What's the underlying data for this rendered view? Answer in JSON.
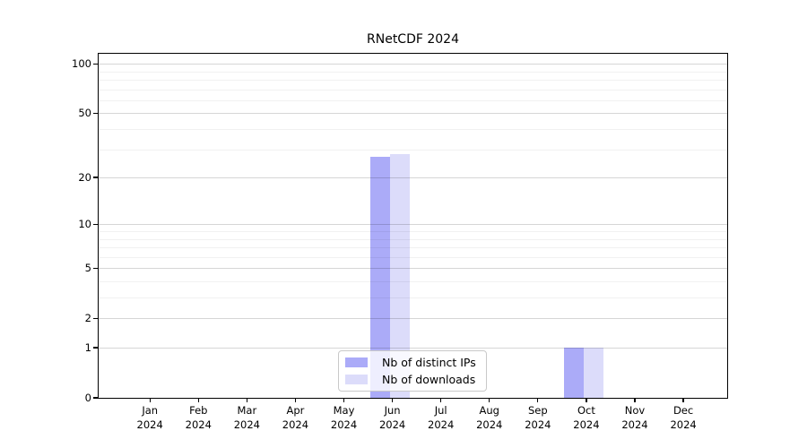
{
  "chart_data": {
    "type": "bar",
    "title": "RNetCDF 2024",
    "x_categories": [
      "Jan",
      "Feb",
      "Mar",
      "Apr",
      "May",
      "Jun",
      "Jul",
      "Aug",
      "Sep",
      "Oct",
      "Nov",
      "Dec"
    ],
    "x_year_label": "2024",
    "series": [
      {
        "name": "Nb of distinct IPs",
        "color": "#ababf8",
        "values": [
          0,
          0,
          0,
          0,
          0,
          27,
          0,
          0,
          0,
          1,
          0,
          0
        ]
      },
      {
        "name": "Nb of downloads",
        "color": "#dcdcfa",
        "values": [
          0,
          0,
          0,
          0,
          0,
          28,
          0,
          0,
          0,
          1,
          0,
          0
        ]
      }
    ],
    "yscale": "log1p",
    "ylim": [
      0,
      115
    ],
    "y_major_ticks": [
      0,
      1,
      2,
      5,
      10,
      20,
      50,
      100
    ],
    "y_minor_gridlines": [
      3,
      4,
      6,
      7,
      8,
      9,
      30,
      40,
      60,
      70,
      80,
      90
    ],
    "grid": "horizontal",
    "legend_position": "inside-bottom-center",
    "colors": {
      "bar_distinct_ips": "#ababf8",
      "bar_downloads": "#dcdcfa",
      "major_grid": "#d6d6d6",
      "minor_grid": "#f0f0f0",
      "axis": "#000000",
      "legend_border": "#c9c9c9",
      "background": "#ffffff"
    }
  }
}
